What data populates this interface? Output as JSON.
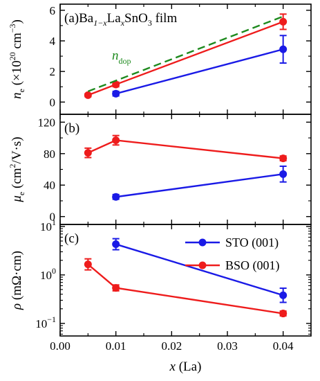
{
  "chart_data": [
    {
      "panel": "(a)",
      "type": "line",
      "annotation": {
        "base": "Ba",
        "sub1": "1−x",
        "mid": "La",
        "sub2": "x",
        "tail": "SnO",
        "sub3": "3",
        "suffix": " film"
      },
      "ylabel": {
        "main": "n",
        "sub": "e",
        "unit": " (×10",
        "sup": "20",
        "unit2": " cm",
        "sup2": "−3",
        "close": ")"
      },
      "ylim": [
        -0.8,
        6.4
      ],
      "yticks": [
        0,
        2,
        4,
        6
      ],
      "yscale": "linear",
      "series": [
        {
          "name": "STO (001)",
          "color": "#1a1ae6",
          "x": [
            0.01,
            0.04
          ],
          "y": [
            0.55,
            3.45
          ],
          "yerr": [
            0.15,
            0.9
          ]
        },
        {
          "name": "BSO (001)",
          "color": "#ee1c1c",
          "x": [
            0.005,
            0.01,
            0.04
          ],
          "y": [
            0.45,
            1.15,
            5.25
          ],
          "yerr": [
            0.1,
            0.15,
            0.5
          ]
        },
        {
          "name": "n_dop",
          "color": "#1e8a1e",
          "dashed": true,
          "x": [
            0.005,
            0.04
          ],
          "y": [
            0.7,
            5.6
          ]
        }
      ],
      "line_label": {
        "main": "n",
        "sub": "dop"
      }
    },
    {
      "panel": "(b)",
      "type": "line",
      "ylabel": {
        "main": "μ",
        "sub": "e",
        "unit": " (cm",
        "sup": "2",
        "unit2": "/V·s)"
      },
      "ylim": [
        -10,
        130
      ],
      "yticks": [
        0,
        40,
        80,
        120
      ],
      "yscale": "linear",
      "series": [
        {
          "name": "STO (001)",
          "color": "#1a1ae6",
          "x": [
            0.01,
            0.04
          ],
          "y": [
            25,
            54
          ],
          "yerr": [
            3,
            10
          ]
        },
        {
          "name": "BSO (001)",
          "color": "#ee1c1c",
          "x": [
            0.005,
            0.01,
            0.04
          ],
          "y": [
            81,
            97,
            74
          ],
          "yerr": [
            6,
            6,
            3
          ]
        }
      ]
    },
    {
      "panel": "(c)",
      "type": "line",
      "ylabel": {
        "main": "ρ",
        "unit": " (mΩ·cm)"
      },
      "ylim": [
        0.055,
        11
      ],
      "yticks": [
        0.1,
        1,
        10
      ],
      "ytick_labels": [
        {
          "base": "10",
          "exp": "−1"
        },
        {
          "base": "10",
          "exp": "0"
        },
        {
          "base": "10",
          "exp": "1"
        }
      ],
      "yscale": "log",
      "series": [
        {
          "name": "STO (001)",
          "color": "#1a1ae6",
          "x": [
            0.01,
            0.04
          ],
          "y": [
            4.3,
            0.38
          ],
          "yerr_log_factor": [
            1.3,
            1.4
          ]
        },
        {
          "name": "BSO (001)",
          "color": "#ee1c1c",
          "x": [
            0.005,
            0.01,
            0.04
          ],
          "y": [
            1.65,
            0.54,
            0.16
          ],
          "yerr_log_factor": [
            1.3,
            1.15,
            1.12
          ]
        }
      ],
      "legend": {
        "placement": "top-right",
        "entries": [
          "STO (001)",
          "BSO (001)"
        ]
      }
    }
  ],
  "xaxis": {
    "label_main": "x",
    "label_unit": " (La)",
    "xlim": [
      0.0,
      0.045
    ],
    "ticks": [
      0.0,
      0.01,
      0.02,
      0.03,
      0.04
    ],
    "tick_labels": [
      "0.00",
      "0.01",
      "0.02",
      "0.03",
      "0.04"
    ]
  }
}
